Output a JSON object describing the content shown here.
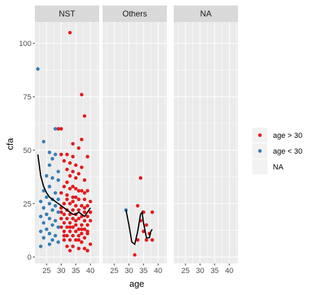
{
  "chart_data": {
    "type": "scatter",
    "xlabel": "age",
    "ylabel": "cfa",
    "xlim": [
      21,
      43
    ],
    "ylim": [
      -3,
      110
    ],
    "x_ticks": [
      25,
      30,
      35,
      40
    ],
    "y_ticks": [
      0,
      25,
      50,
      75,
      100
    ],
    "grid": true,
    "facets": [
      "NST",
      "Others",
      "NA"
    ],
    "legend": {
      "placement": "right",
      "entries": [
        {
          "label": "age > 30",
          "color": "#E41A1C"
        },
        {
          "label": "age < 30",
          "color": "#377EB8"
        },
        {
          "label": "NA",
          "color": null
        }
      ]
    },
    "series": [
      {
        "name": "age > 30",
        "color": "#E41A1C",
        "points": {
          "NST": [
            [
              33,
              105
            ],
            [
              37,
              76
            ],
            [
              38,
              66
            ],
            [
              30,
              60
            ],
            [
              29,
              60
            ],
            [
              37,
              55
            ],
            [
              34,
              53
            ],
            [
              36,
              51
            ],
            [
              30,
              48
            ],
            [
              32,
              48
            ],
            [
              34,
              47
            ],
            [
              31,
              45
            ],
            [
              33,
              44
            ],
            [
              39,
              47
            ],
            [
              35,
              43
            ],
            [
              37,
              42
            ],
            [
              32,
              41
            ],
            [
              34,
              40
            ],
            [
              36,
              39
            ],
            [
              33,
              38
            ],
            [
              35,
              37
            ],
            [
              32,
              35
            ],
            [
              38,
              36
            ],
            [
              31,
              33
            ],
            [
              33,
              32
            ],
            [
              35,
              32
            ],
            [
              37,
              31
            ],
            [
              39,
              31
            ],
            [
              30,
              30
            ],
            [
              32,
              29
            ],
            [
              34,
              28
            ],
            [
              36,
              27
            ],
            [
              38,
              27
            ],
            [
              40,
              26
            ],
            [
              31,
              25
            ],
            [
              33,
              25
            ],
            [
              35,
              24
            ],
            [
              37,
              24
            ],
            [
              39,
              24
            ],
            [
              30,
              23
            ],
            [
              32,
              22
            ],
            [
              34,
              22
            ],
            [
              36,
              22
            ],
            [
              38,
              21
            ],
            [
              40,
              21
            ],
            [
              31,
              20
            ],
            [
              33,
              20
            ],
            [
              35,
              20
            ],
            [
              37,
              19
            ],
            [
              39,
              19
            ],
            [
              30,
              18
            ],
            [
              32,
              18
            ],
            [
              34,
              18
            ],
            [
              36,
              18
            ],
            [
              38,
              17
            ],
            [
              40,
              17
            ],
            [
              31,
              16
            ],
            [
              33,
              16
            ],
            [
              35,
              15
            ],
            [
              37,
              15
            ],
            [
              39,
              15
            ],
            [
              30,
              14
            ],
            [
              32,
              14
            ],
            [
              34,
              14
            ],
            [
              36,
              13
            ],
            [
              38,
              13
            ],
            [
              31,
              12
            ],
            [
              33,
              12
            ],
            [
              35,
              12
            ],
            [
              37,
              11
            ],
            [
              39,
              11
            ],
            [
              32,
              10
            ],
            [
              34,
              10
            ],
            [
              36,
              10
            ],
            [
              38,
              9
            ],
            [
              31,
              8
            ],
            [
              33,
              8
            ],
            [
              35,
              8
            ],
            [
              37,
              7
            ],
            [
              40,
              6
            ],
            [
              32,
              5
            ],
            [
              34,
              5
            ],
            [
              36,
              4
            ],
            [
              38,
              4
            ],
            [
              39,
              3
            ],
            [
              33,
              3
            ],
            [
              36,
              31
            ],
            [
              34,
              26
            ],
            [
              32,
              27
            ],
            [
              38,
              23
            ],
            [
              35,
              17
            ],
            [
              33,
              14
            ],
            [
              37,
              13
            ],
            [
              31,
              10
            ],
            [
              36,
              8
            ],
            [
              39,
              12
            ],
            [
              30,
              21
            ],
            [
              34,
              33
            ],
            [
              38,
              30
            ],
            [
              35,
              28
            ]
          ],
          "Others": [
            [
              34,
              37
            ],
            [
              33,
              24
            ],
            [
              35,
              21
            ],
            [
              34,
              17
            ],
            [
              35,
              12
            ],
            [
              37,
              11
            ],
            [
              33,
              8
            ],
            [
              36,
              8
            ],
            [
              38,
              8
            ],
            [
              32,
              1
            ],
            [
              38,
              21
            ],
            [
              36,
              15
            ]
          ]
        }
      },
      {
        "name": "age < 30",
        "color": "#377EB8",
        "points": {
          "NST": [
            [
              22,
              88
            ],
            [
              28,
              60
            ],
            [
              24,
              54
            ],
            [
              26,
              49
            ],
            [
              28,
              48
            ],
            [
              27,
              46
            ],
            [
              26,
              43
            ],
            [
              29,
              40
            ],
            [
              25,
              38
            ],
            [
              27,
              37
            ],
            [
              29,
              36
            ],
            [
              26,
              33
            ],
            [
              24,
              31
            ],
            [
              28,
              30
            ],
            [
              25,
              28
            ],
            [
              27,
              27
            ],
            [
              29,
              27
            ],
            [
              23,
              26
            ],
            [
              26,
              25
            ],
            [
              28,
              24
            ],
            [
              24,
              23
            ],
            [
              27,
              22
            ],
            [
              29,
              21
            ],
            [
              25,
              20
            ],
            [
              23,
              19
            ],
            [
              26,
              18
            ],
            [
              28,
              17
            ],
            [
              24,
              16
            ],
            [
              27,
              15
            ],
            [
              29,
              14
            ],
            [
              25,
              13
            ],
            [
              23,
              12
            ],
            [
              26,
              11
            ],
            [
              28,
              10
            ],
            [
              24,
              9
            ],
            [
              27,
              8
            ],
            [
              29,
              7
            ],
            [
              26,
              6
            ],
            [
              23,
              5
            ]
          ],
          "Others": [
            [
              29,
              22
            ]
          ]
        }
      }
    ],
    "smooth_lines": {
      "NST": [
        [
          22,
          48
        ],
        [
          23,
          38
        ],
        [
          24,
          33
        ],
        [
          25,
          30
        ],
        [
          26,
          28
        ],
        [
          27,
          27
        ],
        [
          28,
          26
        ],
        [
          29,
          25
        ],
        [
          30,
          24
        ],
        [
          31,
          23
        ],
        [
          32,
          22
        ],
        [
          33,
          21
        ],
        [
          34,
          20
        ],
        [
          35,
          20
        ],
        [
          36,
          21
        ],
        [
          37,
          20
        ],
        [
          38,
          19
        ],
        [
          39,
          21
        ],
        [
          40,
          23
        ]
      ],
      "Others": [
        [
          29,
          22
        ],
        [
          30,
          15
        ],
        [
          31,
          7
        ],
        [
          32,
          6
        ],
        [
          33,
          12
        ],
        [
          34,
          20
        ],
        [
          34.5,
          21
        ],
        [
          35,
          16
        ],
        [
          36,
          9
        ],
        [
          37,
          9
        ],
        [
          37.5,
          12
        ],
        [
          38,
          13
        ]
      ]
    }
  }
}
